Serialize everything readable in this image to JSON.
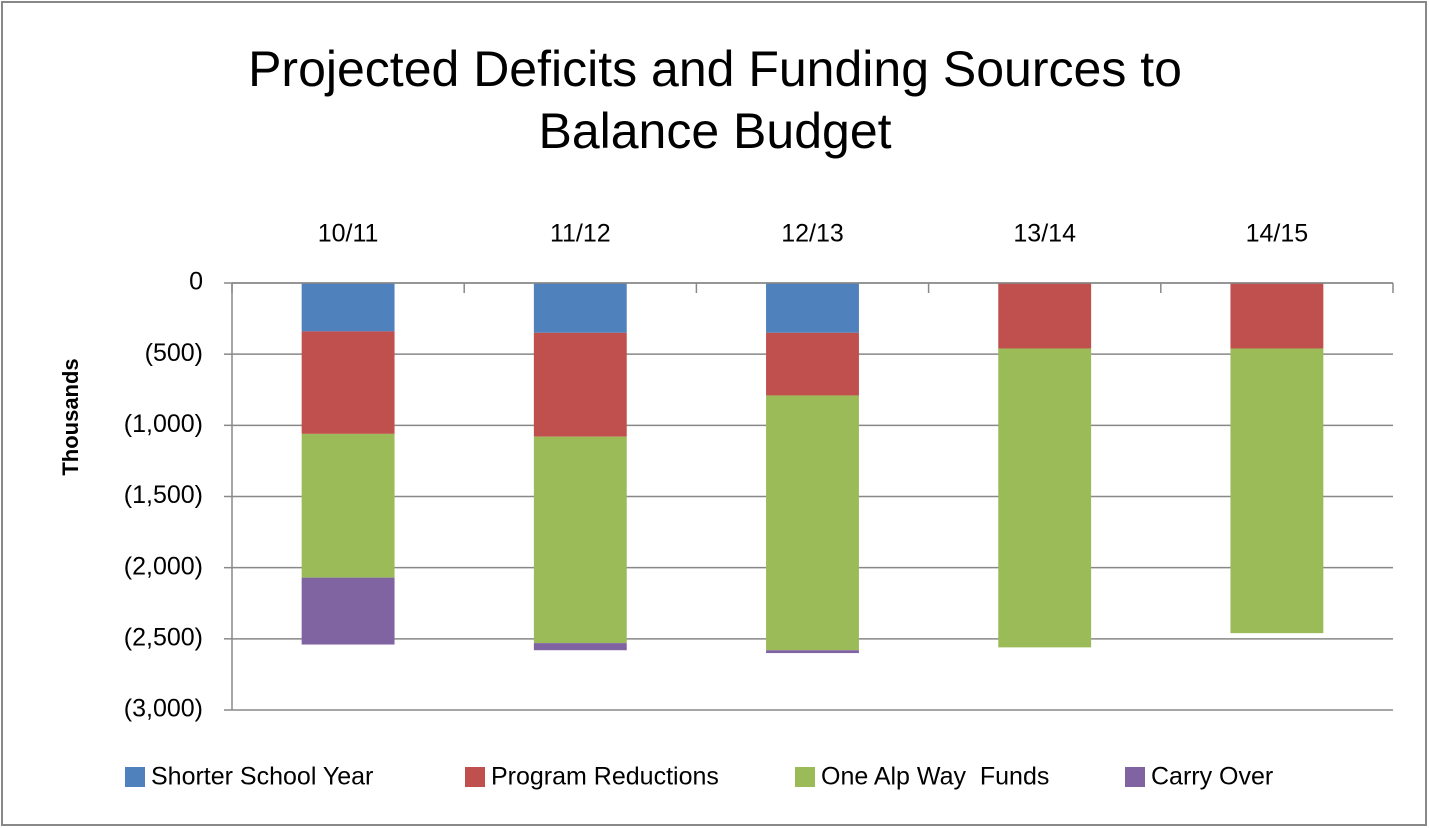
{
  "chart_data": {
    "type": "stacked_bar",
    "title": "Projected Deficits and Funding Sources to Balance Budget",
    "y_label": "Thousands",
    "categories": [
      "10/11",
      "11/12",
      "12/13",
      "13/14",
      "14/15"
    ],
    "series": [
      {
        "name": "Shorter School Year",
        "color": "#4f81bd",
        "values": [
          -340,
          -350,
          -350,
          0,
          0
        ]
      },
      {
        "name": "Program Reductions",
        "color": "#c0504d",
        "values": [
          -720,
          -730,
          -440,
          -460,
          -460
        ]
      },
      {
        "name": "One Alp Way  Funds",
        "color": "#9bbb59",
        "values": [
          -1010,
          -1450,
          -1790,
          -2100,
          -2000
        ]
      },
      {
        "name": "Carry Over",
        "color": "#8064a2",
        "values": [
          -470,
          -50,
          -20,
          0,
          0
        ]
      }
    ],
    "ylim": [
      -3000,
      0
    ],
    "yticks": [
      0,
      {
        "value": -500,
        "label": "(500)"
      },
      {
        "value": -1000,
        "label": "(1,000)"
      },
      {
        "value": -1500,
        "label": "(1,500)"
      },
      {
        "value": -2000,
        "label": "(2,000)"
      },
      {
        "value": -2500,
        "label": "(2,500)"
      },
      {
        "value": -3000,
        "label": "(3,000)"
      }
    ],
    "grid": true,
    "legend": "bottom"
  }
}
